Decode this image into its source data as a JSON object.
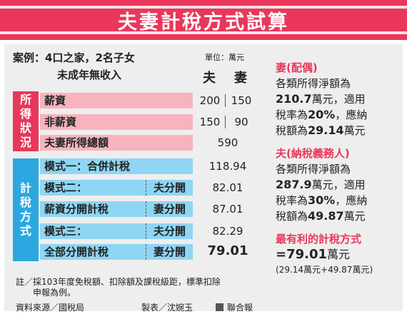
{
  "title": "夫妻計稅方式試算",
  "case": {
    "label": "案例：4口之家，2名子女",
    "sub": "未成年無收入"
  },
  "unit": "單位：萬元",
  "header": {
    "husband": "夫",
    "wife": "妻"
  },
  "income_section": {
    "label_chars": [
      "所",
      "得",
      "狀",
      "況"
    ],
    "rows": [
      {
        "label": "薪資",
        "husband": "200",
        "wife": "150"
      },
      {
        "label": "非薪資",
        "husband": "150",
        "wife": "90"
      },
      {
        "label": "夫妻所得總額",
        "total": "590"
      }
    ]
  },
  "tax_section": {
    "label_chars": [
      "計",
      "稅",
      "方",
      "式"
    ],
    "rows": [
      {
        "label": "模式一：合併計稅",
        "value": "118.94"
      },
      {
        "label": "模式二：",
        "sub": "夫分開",
        "value": "82.01"
      },
      {
        "label": "薪資分開計稅",
        "sub": "妻分開",
        "value": "87.01"
      },
      {
        "label": "模式三：",
        "sub": "夫分開",
        "value": "82.29"
      },
      {
        "label": "全部分開計稅",
        "sub": "妻分開",
        "value": "79.01"
      }
    ]
  },
  "notes": {
    "line1": "註／採103年度免稅額、扣除額及課稅級距，標準扣除",
    "line2": "申報為例。",
    "source": "資料來源／國稅局",
    "maker": "製表／沈婉玉",
    "paper": "聯合報"
  },
  "right": {
    "wife": {
      "head": "妻(配偶)",
      "l1": "各類所得淨額為",
      "l2a": "210.7",
      "l2b": "萬元，適用",
      "l3a": "稅率為",
      "l3b": "20%",
      "l3c": "，應納",
      "l4a": "稅額為",
      "l4b": "29.14",
      "l4c": "萬元"
    },
    "husband": {
      "head": "夫(納稅義務人)",
      "l1": "各類所得淨額為",
      "l2a": "287.9",
      "l2b": "萬元，適用",
      "l3a": "稅率為",
      "l3b": "30%",
      "l3c": "，應納",
      "l4a": "稅額為",
      "l4b": "49.87",
      "l4c": "萬元"
    },
    "best": {
      "head": "最有利的計稅方式",
      "valA": "=79.01",
      "valB": "萬元",
      "detail": "(29.14萬元+49.87萬元)"
    }
  }
}
